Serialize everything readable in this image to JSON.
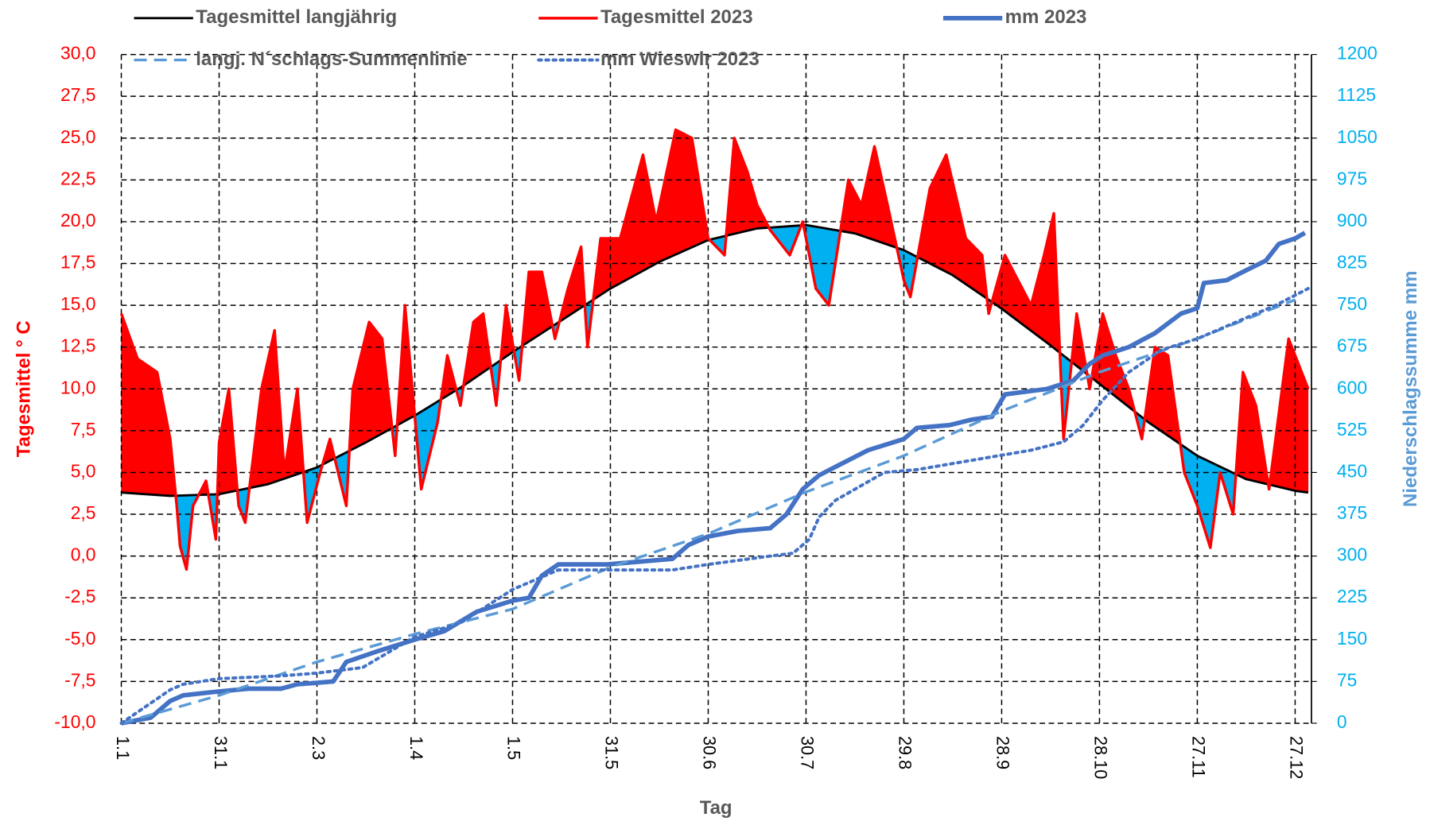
{
  "chart_data": {
    "type": "line",
    "x_label": "Tag",
    "y_label": "Tagesmittel ° C",
    "y2_label": "Niederschlagssumme mm",
    "xlim": [
      1,
      366
    ],
    "ylim": [
      -10,
      30
    ],
    "y2lim": [
      0,
      1200
    ],
    "grid": true,
    "xticks": [
      {
        "value": 1,
        "label": "1.1"
      },
      {
        "value": 31,
        "label": "31.1"
      },
      {
        "value": 61,
        "label": "2.3"
      },
      {
        "value": 91,
        "label": "1.4"
      },
      {
        "value": 121,
        "label": "1.5"
      },
      {
        "value": 151,
        "label": "31.5"
      },
      {
        "value": 181,
        "label": "30.6"
      },
      {
        "value": 211,
        "label": "30.7"
      },
      {
        "value": 241,
        "label": "29.8"
      },
      {
        "value": 271,
        "label": "28.9"
      },
      {
        "value": 301,
        "label": "28.10"
      },
      {
        "value": 331,
        "label": "27.11"
      },
      {
        "value": 361,
        "label": "27.12"
      }
    ],
    "yticks": [
      {
        "value": -10,
        "label": "-10,0"
      },
      {
        "value": -7.5,
        "label": "-7,5"
      },
      {
        "value": -5,
        "label": "-5,0"
      },
      {
        "value": -2.5,
        "label": "-2,5"
      },
      {
        "value": 0,
        "label": "0,0"
      },
      {
        "value": 2.5,
        "label": "2,5"
      },
      {
        "value": 5,
        "label": "5,0"
      },
      {
        "value": 7.5,
        "label": "7,5"
      },
      {
        "value": 10,
        "label": "10,0"
      },
      {
        "value": 12.5,
        "label": "12,5"
      },
      {
        "value": 15,
        "label": "15,0"
      },
      {
        "value": 17.5,
        "label": "17,5"
      },
      {
        "value": 20,
        "label": "20,0"
      },
      {
        "value": 22.5,
        "label": "22,5"
      },
      {
        "value": 25,
        "label": "25,0"
      },
      {
        "value": 27.5,
        "label": "27,5"
      },
      {
        "value": 30,
        "label": "30,0"
      }
    ],
    "y2ticks": [
      0,
      75,
      150,
      225,
      300,
      375,
      450,
      525,
      600,
      675,
      750,
      825,
      900,
      975,
      1050,
      1125,
      1200
    ],
    "above_color": "#ff0000",
    "below_color": "#00b0f0",
    "series": [
      {
        "name": "Tagesmittel langjährig",
        "color": "#000000",
        "style": "solid",
        "axis": "y",
        "x": [
          1,
          16,
          31,
          46,
          61,
          76,
          91,
          106,
          121,
          136,
          151,
          166,
          181,
          196,
          211,
          226,
          241,
          256,
          271,
          286,
          301,
          316,
          331,
          346,
          361,
          365
        ],
        "values": [
          3.8,
          3.6,
          3.7,
          4.3,
          5.3,
          6.8,
          8.4,
          10.2,
          12.2,
          14.1,
          16.0,
          17.6,
          18.9,
          19.6,
          19.8,
          19.3,
          18.3,
          16.8,
          14.8,
          12.6,
          10.3,
          8.0,
          6.0,
          4.6,
          3.9,
          3.8
        ]
      },
      {
        "name": "Tagesmittel 2023",
        "color": "#ff0000",
        "style": "solid",
        "axis": "y",
        "x": [
          1,
          6,
          12,
          16,
          18,
          19,
          21,
          23,
          27,
          30,
          31,
          34,
          37,
          39,
          44,
          48,
          51,
          55,
          58,
          62,
          65,
          70,
          72,
          77,
          81,
          85,
          88,
          93,
          98,
          101,
          105,
          109,
          112,
          116,
          119,
          123,
          126,
          130,
          134,
          138,
          142,
          144,
          148,
          154,
          161,
          165,
          171,
          176,
          181,
          186,
          189,
          193,
          196,
          200,
          206,
          210,
          214,
          218,
          224,
          228,
          232,
          236,
          241,
          243,
          249,
          254,
          260,
          265,
          267,
          272,
          276,
          280,
          284,
          287,
          290,
          294,
          298,
          302,
          306,
          310,
          314,
          318,
          322,
          327,
          331,
          335,
          338,
          342,
          345,
          349,
          353,
          357,
          359,
          363,
          365
        ],
        "values": [
          14.5,
          11.8,
          11,
          7,
          3,
          0.6,
          -0.8,
          3,
          4.5,
          1,
          6.8,
          10,
          3,
          2,
          10,
          13.5,
          5,
          10,
          2,
          5,
          7,
          3,
          10,
          14,
          13,
          6,
          15,
          4,
          8,
          12,
          9,
          14,
          14.5,
          9,
          15,
          10.5,
          17,
          17,
          13,
          16,
          18.5,
          12.5,
          19,
          19,
          24,
          20,
          25.5,
          25,
          19,
          18,
          25,
          23,
          21,
          19.5,
          18,
          20,
          16,
          15,
          22.5,
          21,
          24.5,
          21,
          16.5,
          15.5,
          22,
          24,
          19,
          18,
          14.5,
          18,
          16.5,
          15,
          18,
          20.5,
          7,
          14.5,
          10,
          14.5,
          12,
          10,
          7,
          12.5,
          12,
          5,
          3,
          0.5,
          5,
          2.5,
          11,
          9,
          4,
          10,
          13,
          11,
          10
        ]
      },
      {
        "name": "mm 2023",
        "color": "#4472c4",
        "style": "solid",
        "axis": "y2",
        "x": [
          1,
          10,
          16,
          20,
          31,
          40,
          50,
          55,
          60,
          66,
          70,
          80,
          91,
          100,
          110,
          121,
          126,
          130,
          135,
          150,
          160,
          170,
          175,
          181,
          190,
          200,
          205,
          210,
          215,
          220,
          230,
          241,
          245,
          255,
          262,
          268,
          272,
          285,
          293,
          298,
          302,
          310,
          318,
          326,
          331,
          333,
          340,
          345,
          352,
          356,
          361,
          364
        ],
        "values": [
          0,
          10,
          40,
          50,
          57,
          62,
          62,
          70,
          72,
          75,
          110,
          130,
          150,
          165,
          200,
          220,
          225,
          265,
          285,
          285,
          290,
          295,
          320,
          335,
          345,
          350,
          375,
          420,
          445,
          460,
          490,
          510,
          530,
          535,
          545,
          550,
          590,
          600,
          615,
          645,
          660,
          675,
          700,
          735,
          745,
          790,
          795,
          810,
          830,
          860,
          870,
          880
        ]
      },
      {
        "name": "langj. N´schlags-Summenlinie",
        "color": "#5b9bd5",
        "style": "dashed",
        "axis": "y2",
        "x": [
          1,
          31,
          61,
          91,
          121,
          151,
          181,
          211,
          241,
          271,
          301,
          331,
          361
        ],
        "values": [
          0,
          50,
          110,
          160,
          205,
          280,
          340,
          415,
          480,
          560,
          630,
          690,
          760
        ]
      },
      {
        "name": "mm Wieswlr 2023",
        "color": "#4472c4",
        "style": "dotted",
        "axis": "y2",
        "x": [
          1,
          16,
          20,
          31,
          50,
          61,
          75,
          91,
          105,
          121,
          135,
          150,
          170,
          181,
          200,
          207,
          212,
          215,
          220,
          235,
          245,
          260,
          280,
          290,
          296,
          302,
          310,
          320,
          331,
          345,
          355,
          365
        ],
        "values": [
          0,
          60,
          70,
          80,
          85,
          90,
          100,
          155,
          180,
          240,
          275,
          275,
          275,
          285,
          300,
          305,
          330,
          370,
          400,
          450,
          455,
          470,
          490,
          505,
          535,
          580,
          630,
          670,
          690,
          725,
          750,
          780
        ]
      }
    ]
  }
}
